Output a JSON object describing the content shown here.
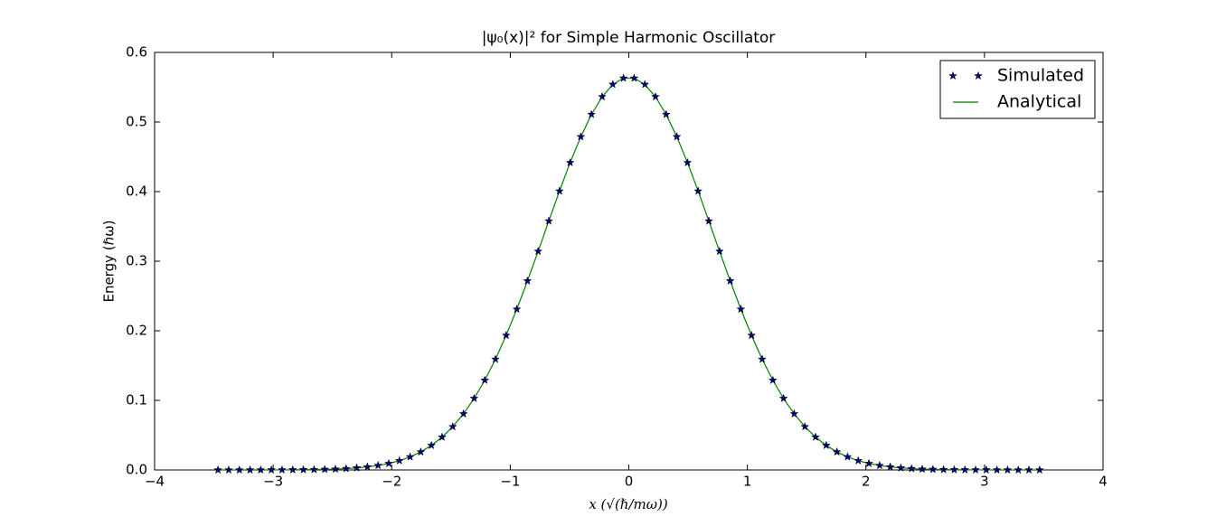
{
  "chart_data": {
    "type": "line",
    "title": "|ψ₀(x)|²  for Simple Harmonic Oscillator",
    "x_label": "x (√(ℏ/mω))",
    "y_label": "Energy (ℏω)",
    "xlim": [
      -4,
      4
    ],
    "ylim": [
      0,
      0.6
    ],
    "xticks": [
      {
        "value": -4,
        "label": "−4"
      },
      {
        "value": -3,
        "label": "−3"
      },
      {
        "value": -2,
        "label": "−2"
      },
      {
        "value": -1,
        "label": "−1"
      },
      0,
      1,
      2,
      3,
      4
    ],
    "yticks": [
      {
        "value": 0,
        "label": "0.0"
      },
      0.1,
      0.2,
      0.3,
      0.4,
      0.5,
      0.6
    ],
    "legend": "upper right",
    "grid": false,
    "x": [
      -3.465,
      -3.375,
      -3.285,
      -3.195,
      -3.105,
      -3.015,
      -2.925,
      -2.835,
      -2.745,
      -2.655,
      -2.565,
      -2.475,
      -2.385,
      -2.295,
      -2.205,
      -2.115,
      -2.025,
      -1.935,
      -1.845,
      -1.755,
      -1.665,
      -1.575,
      -1.485,
      -1.395,
      -1.305,
      -1.215,
      -1.125,
      -1.035,
      -0.945,
      -0.855,
      -0.765,
      -0.675,
      -0.585,
      -0.495,
      -0.405,
      -0.315,
      -0.225,
      -0.135,
      -0.045,
      0.045,
      0.135,
      0.225,
      0.315,
      0.405,
      0.495,
      0.585,
      0.675,
      0.765,
      0.855,
      0.945,
      1.035,
      1.125,
      1.215,
      1.305,
      1.395,
      1.485,
      1.575,
      1.665,
      1.755,
      1.845,
      1.935,
      2.025,
      2.115,
      2.205,
      2.295,
      2.385,
      2.475,
      2.565,
      2.655,
      2.745,
      2.835,
      2.925,
      3.015,
      3.105,
      3.195,
      3.285,
      3.375,
      3.465
    ],
    "series": [
      {
        "name": "Simulated",
        "color": "#000080",
        "marker": "star",
        "values": [
          0,
          0,
          0,
          0,
          0,
          0.0001,
          0.0001,
          0.0002,
          0.0003,
          0.0005,
          0.0008,
          0.0012,
          0.0019,
          0.0029,
          0.0044,
          0.0064,
          0.0093,
          0.0133,
          0.0188,
          0.0259,
          0.0353,
          0.0472,
          0.0622,
          0.0806,
          0.1028,
          0.1289,
          0.1591,
          0.1933,
          0.231,
          0.2716,
          0.3142,
          0.3577,
          0.4007,
          0.4416,
          0.4788,
          0.5109,
          0.5363,
          0.554,
          0.563,
          0.563,
          0.554,
          0.5363,
          0.5109,
          0.4788,
          0.4416,
          0.4007,
          0.3577,
          0.3142,
          0.2716,
          0.231,
          0.1933,
          0.1591,
          0.1289,
          0.1028,
          0.0806,
          0.0622,
          0.0472,
          0.0353,
          0.0259,
          0.0188,
          0.0133,
          0.0093,
          0.0064,
          0.0044,
          0.0029,
          0.0019,
          0.0012,
          0.0008,
          0.0005,
          0.0003,
          0.0002,
          0.0001,
          0.0001,
          0,
          0,
          0,
          0,
          0
        ]
      },
      {
        "name": "Analytical",
        "color": "#008000",
        "marker": "none",
        "values": [
          0,
          0,
          0,
          0,
          0,
          0.0001,
          0.0001,
          0.0002,
          0.0003,
          0.0005,
          0.0008,
          0.0012,
          0.0019,
          0.0029,
          0.0044,
          0.0064,
          0.0093,
          0.0133,
          0.0188,
          0.0259,
          0.0353,
          0.0472,
          0.0622,
          0.0806,
          0.1028,
          0.1289,
          0.1591,
          0.1933,
          0.231,
          0.2716,
          0.3142,
          0.3577,
          0.4007,
          0.4416,
          0.4788,
          0.5109,
          0.5363,
          0.554,
          0.563,
          0.563,
          0.554,
          0.5363,
          0.5109,
          0.4788,
          0.4416,
          0.4007,
          0.3577,
          0.3142,
          0.2716,
          0.231,
          0.1933,
          0.1591,
          0.1289,
          0.1028,
          0.0806,
          0.0622,
          0.0472,
          0.0353,
          0.0259,
          0.0188,
          0.0133,
          0.0093,
          0.0064,
          0.0044,
          0.0029,
          0.0019,
          0.0012,
          0.0008,
          0.0005,
          0.0003,
          0.0002,
          0.0001,
          0.0001,
          0,
          0,
          0,
          0,
          0
        ]
      }
    ]
  }
}
